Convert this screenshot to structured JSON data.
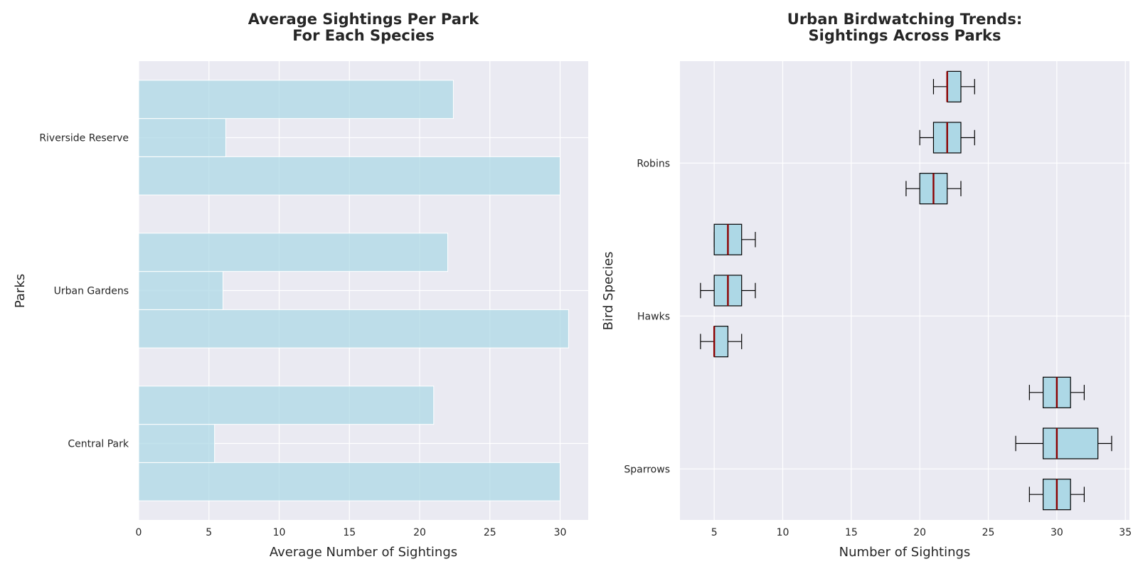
{
  "style": {
    "plot_background": "#eaeaf2",
    "grid_color": "#ffffff",
    "bar_color": "#add8e6",
    "box_fill": "#add8e6",
    "box_edge": "#000000",
    "median_color": "#8b0000",
    "text_color": "#262626"
  },
  "chart_data": [
    {
      "type": "bar",
      "orientation": "horizontal",
      "title": [
        "Average Sightings Per Park",
        "For Each Species"
      ],
      "xlabel": "Average Number of Sightings",
      "ylabel": "Parks",
      "categories": [
        "Central Park",
        "Urban Gardens",
        "Riverside Reserve"
      ],
      "series": [
        {
          "values": [
            30.0,
            30.6,
            30.0
          ]
        },
        {
          "values": [
            5.4,
            6.0,
            6.2
          ]
        },
        {
          "values": [
            21.0,
            22.0,
            22.4
          ]
        }
      ],
      "xlim": [
        0,
        32
      ],
      "xticks": [
        0,
        5,
        10,
        15,
        20,
        25,
        30
      ],
      "grid": true,
      "legend": "none"
    },
    {
      "type": "box",
      "orientation": "horizontal",
      "title": [
        "Urban Birdwatching Trends:",
        "Sightings Across Parks"
      ],
      "xlabel": "Number of Sightings",
      "ylabel": "Bird Species",
      "categories": [
        "Sparrows",
        "Hawks",
        "Robins"
      ],
      "ytick_positions": [
        1,
        4,
        7
      ],
      "boxes": [
        {
          "pos": 0.5,
          "whislo": 28,
          "q1": 29,
          "med": 30,
          "q3": 31,
          "whishi": 32
        },
        {
          "pos": 1.5,
          "whislo": 27,
          "q1": 29,
          "med": 30,
          "q3": 33,
          "whishi": 34
        },
        {
          "pos": 2.5,
          "whislo": 28,
          "q1": 29,
          "med": 30,
          "q3": 31,
          "whishi": 32
        },
        {
          "pos": 3.5,
          "whislo": 4,
          "q1": 5,
          "med": 5,
          "q3": 6,
          "whishi": 7
        },
        {
          "pos": 4.5,
          "whislo": 4,
          "q1": 5,
          "med": 6,
          "q3": 7,
          "whishi": 8
        },
        {
          "pos": 5.5,
          "whislo": 5,
          "q1": 5,
          "med": 6,
          "q3": 7,
          "whishi": 8
        },
        {
          "pos": 6.5,
          "whislo": 19,
          "q1": 20,
          "med": 21,
          "q3": 22,
          "whishi": 23
        },
        {
          "pos": 7.5,
          "whislo": 20,
          "q1": 21,
          "med": 22,
          "q3": 23,
          "whishi": 24
        },
        {
          "pos": 8.5,
          "whislo": 21,
          "q1": 22,
          "med": 22,
          "q3": 23,
          "whishi": 24
        }
      ],
      "xlim": [
        2.5,
        35.3
      ],
      "xticks": [
        5,
        10,
        15,
        20,
        25,
        30,
        35
      ],
      "ylim": [
        0,
        9
      ],
      "grid": true,
      "legend": "none"
    }
  ]
}
